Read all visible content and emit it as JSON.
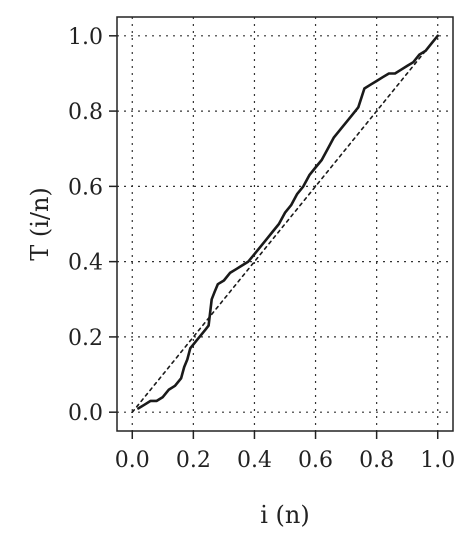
{
  "chart_data": {
    "type": "line",
    "title": "",
    "xlabel": "i (n)",
    "ylabel": "T (i/n)",
    "xlim": [
      -0.05,
      1.05
    ],
    "ylim": [
      -0.05,
      1.05
    ],
    "grid": true,
    "x_ticks": [
      0.0,
      0.2,
      0.4,
      0.6,
      0.8,
      1.0
    ],
    "y_ticks": [
      0.0,
      0.2,
      0.4,
      0.6,
      0.8,
      1.0
    ],
    "x_tick_labels": [
      "0.0",
      "0.2",
      "0.4",
      "0.6",
      "0.8",
      "1.0"
    ],
    "y_tick_labels": [
      "0.0",
      "0.2",
      "0.4",
      "0.6",
      "0.8",
      "1.0"
    ],
    "series": [
      {
        "style": "solid",
        "x": [
          0.02,
          0.04,
          0.06,
          0.08,
          0.1,
          0.12,
          0.14,
          0.16,
          0.17,
          0.18,
          0.19,
          0.2,
          0.21,
          0.22,
          0.24,
          0.25,
          0.26,
          0.27,
          0.28,
          0.3,
          0.32,
          0.34,
          0.36,
          0.38,
          0.4,
          0.42,
          0.44,
          0.46,
          0.48,
          0.5,
          0.52,
          0.54,
          0.56,
          0.58,
          0.6,
          0.62,
          0.64,
          0.66,
          0.68,
          0.7,
          0.72,
          0.74,
          0.76,
          0.78,
          0.8,
          0.82,
          0.84,
          0.86,
          0.88,
          0.9,
          0.92,
          0.94,
          0.96,
          0.98,
          1.0
        ],
        "y": [
          0.01,
          0.02,
          0.03,
          0.03,
          0.04,
          0.06,
          0.07,
          0.09,
          0.12,
          0.14,
          0.17,
          0.18,
          0.19,
          0.2,
          0.22,
          0.23,
          0.3,
          0.32,
          0.34,
          0.35,
          0.37,
          0.38,
          0.39,
          0.4,
          0.42,
          0.44,
          0.46,
          0.48,
          0.5,
          0.53,
          0.55,
          0.58,
          0.6,
          0.63,
          0.65,
          0.67,
          0.7,
          0.73,
          0.75,
          0.77,
          0.79,
          0.81,
          0.86,
          0.87,
          0.88,
          0.89,
          0.9,
          0.9,
          0.91,
          0.92,
          0.93,
          0.95,
          0.96,
          0.98,
          1.0
        ]
      },
      {
        "style": "dotted",
        "x": [
          0.0,
          1.0
        ],
        "y": [
          0.0,
          1.0
        ]
      }
    ]
  }
}
